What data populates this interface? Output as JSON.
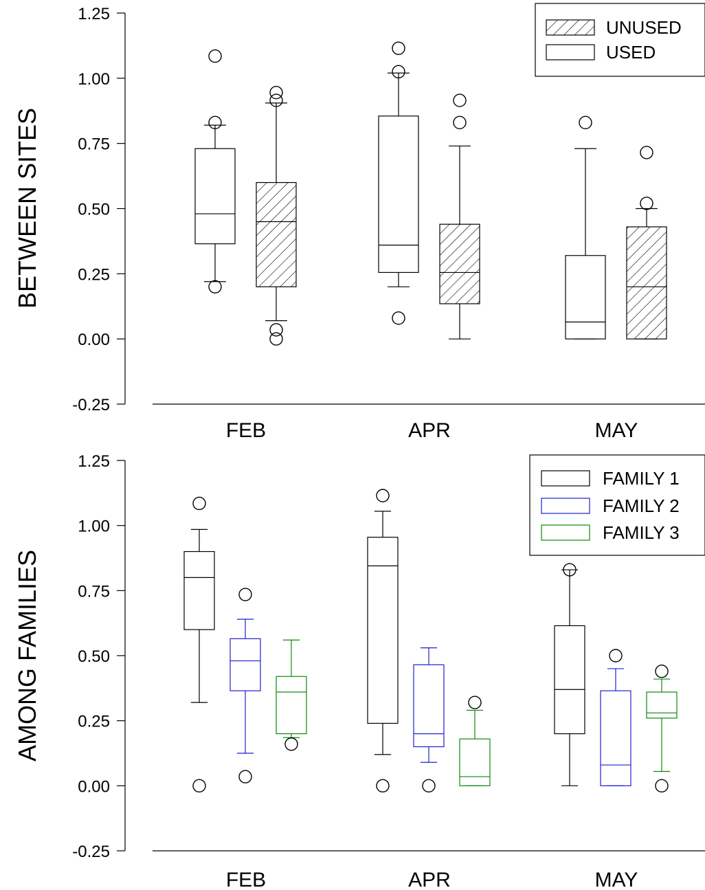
{
  "chart_data": [
    {
      "type": "boxplot",
      "ylabel": "BETWEEN SITES",
      "ylim": [
        -0.25,
        1.25
      ],
      "yticks": [
        "-0.25",
        "0.00",
        "0.25",
        "0.50",
        "0.75",
        "1.00",
        "1.25"
      ],
      "categories": [
        "FEB",
        "APR",
        "MAY"
      ],
      "legend": {
        "position": "top-right",
        "entries": [
          "UNUSED",
          "USED"
        ]
      },
      "series": [
        {
          "name": "USED",
          "fill": "none",
          "color": "#000000",
          "boxes": [
            {
              "category": "FEB",
              "q1": 0.365,
              "median": 0.48,
              "q3": 0.73,
              "whisker_low": 0.22,
              "whisker_high": 0.82,
              "outliers": [
                0.2,
                0.83,
                1.085
              ]
            },
            {
              "category": "APR",
              "q1": 0.255,
              "median": 0.36,
              "q3": 0.855,
              "whisker_low": 0.2,
              "whisker_high": 1.02,
              "outliers": [
                0.08,
                1.025,
                1.115
              ]
            },
            {
              "category": "MAY",
              "q1": 0.0,
              "median": 0.065,
              "q3": 0.32,
              "whisker_low": 0.0,
              "whisker_high": 0.73,
              "outliers": [
                0.83
              ]
            }
          ]
        },
        {
          "name": "UNUSED",
          "fill": "hatch",
          "color": "#000000",
          "boxes": [
            {
              "category": "FEB",
              "q1": 0.2,
              "median": 0.45,
              "q3": 0.6,
              "whisker_low": 0.07,
              "whisker_high": 0.905,
              "outliers": [
                0.0,
                0.035,
                0.915,
                0.945
              ]
            },
            {
              "category": "APR",
              "q1": 0.135,
              "median": 0.255,
              "q3": 0.44,
              "whisker_low": 0.0,
              "whisker_high": 0.74,
              "outliers": [
                0.83,
                0.915
              ]
            },
            {
              "category": "MAY",
              "q1": 0.0,
              "median": 0.2,
              "q3": 0.43,
              "whisker_low": 0.0,
              "whisker_high": 0.5,
              "outliers": [
                0.52,
                0.715
              ]
            }
          ]
        }
      ]
    },
    {
      "type": "boxplot",
      "ylabel": "AMONG FAMILIES",
      "ylim": [
        -0.25,
        1.25
      ],
      "yticks": [
        "-0.25",
        "0.00",
        "0.25",
        "0.50",
        "0.75",
        "1.00",
        "1.25"
      ],
      "categories": [
        "FEB",
        "APR",
        "MAY"
      ],
      "legend": {
        "position": "top-right",
        "entries": [
          "FAMILY 1",
          "FAMILY 2",
          "FAMILY 3"
        ]
      },
      "series": [
        {
          "name": "FAMILY 1",
          "fill": "none",
          "color": "#000000",
          "boxes": [
            {
              "category": "FEB",
              "q1": 0.6,
              "median": 0.8,
              "q3": 0.9,
              "whisker_low": 0.32,
              "whisker_high": 0.985,
              "outliers": [
                0.0,
                1.085
              ]
            },
            {
              "category": "APR",
              "q1": 0.24,
              "median": 0.845,
              "q3": 0.955,
              "whisker_low": 0.12,
              "whisker_high": 1.055,
              "outliers": [
                0.0,
                1.115
              ]
            },
            {
              "category": "MAY",
              "q1": 0.2,
              "median": 0.37,
              "q3": 0.615,
              "whisker_low": 0.0,
              "whisker_high": 0.83,
              "outliers": [
                0.83
              ]
            }
          ]
        },
        {
          "name": "FAMILY 2",
          "fill": "none",
          "color": "#1f1fd0",
          "boxes": [
            {
              "category": "FEB",
              "q1": 0.365,
              "median": 0.48,
              "q3": 0.565,
              "whisker_low": 0.125,
              "whisker_high": 0.64,
              "outliers": [
                0.035,
                0.735
              ]
            },
            {
              "category": "APR",
              "q1": 0.15,
              "median": 0.2,
              "q3": 0.465,
              "whisker_low": 0.09,
              "whisker_high": 0.53,
              "outliers": [
                0.0
              ]
            },
            {
              "category": "MAY",
              "q1": 0.0,
              "median": 0.08,
              "q3": 0.365,
              "whisker_low": 0.0,
              "whisker_high": 0.45,
              "outliers": [
                0.5
              ]
            }
          ]
        },
        {
          "name": "FAMILY 3",
          "fill": "none",
          "color": "#0a8a0a",
          "boxes": [
            {
              "category": "FEB",
              "q1": 0.2,
              "median": 0.36,
              "q3": 0.42,
              "whisker_low": 0.185,
              "whisker_high": 0.56,
              "outliers": [
                0.16
              ]
            },
            {
              "category": "APR",
              "q1": 0.0,
              "median": 0.035,
              "q3": 0.18,
              "whisker_low": 0.0,
              "whisker_high": 0.29,
              "outliers": [
                0.32
              ]
            },
            {
              "category": "MAY",
              "q1": 0.26,
              "median": 0.28,
              "q3": 0.36,
              "whisker_low": 0.055,
              "whisker_high": 0.41,
              "outliers": [
                0.0,
                0.44
              ]
            }
          ]
        }
      ]
    }
  ]
}
